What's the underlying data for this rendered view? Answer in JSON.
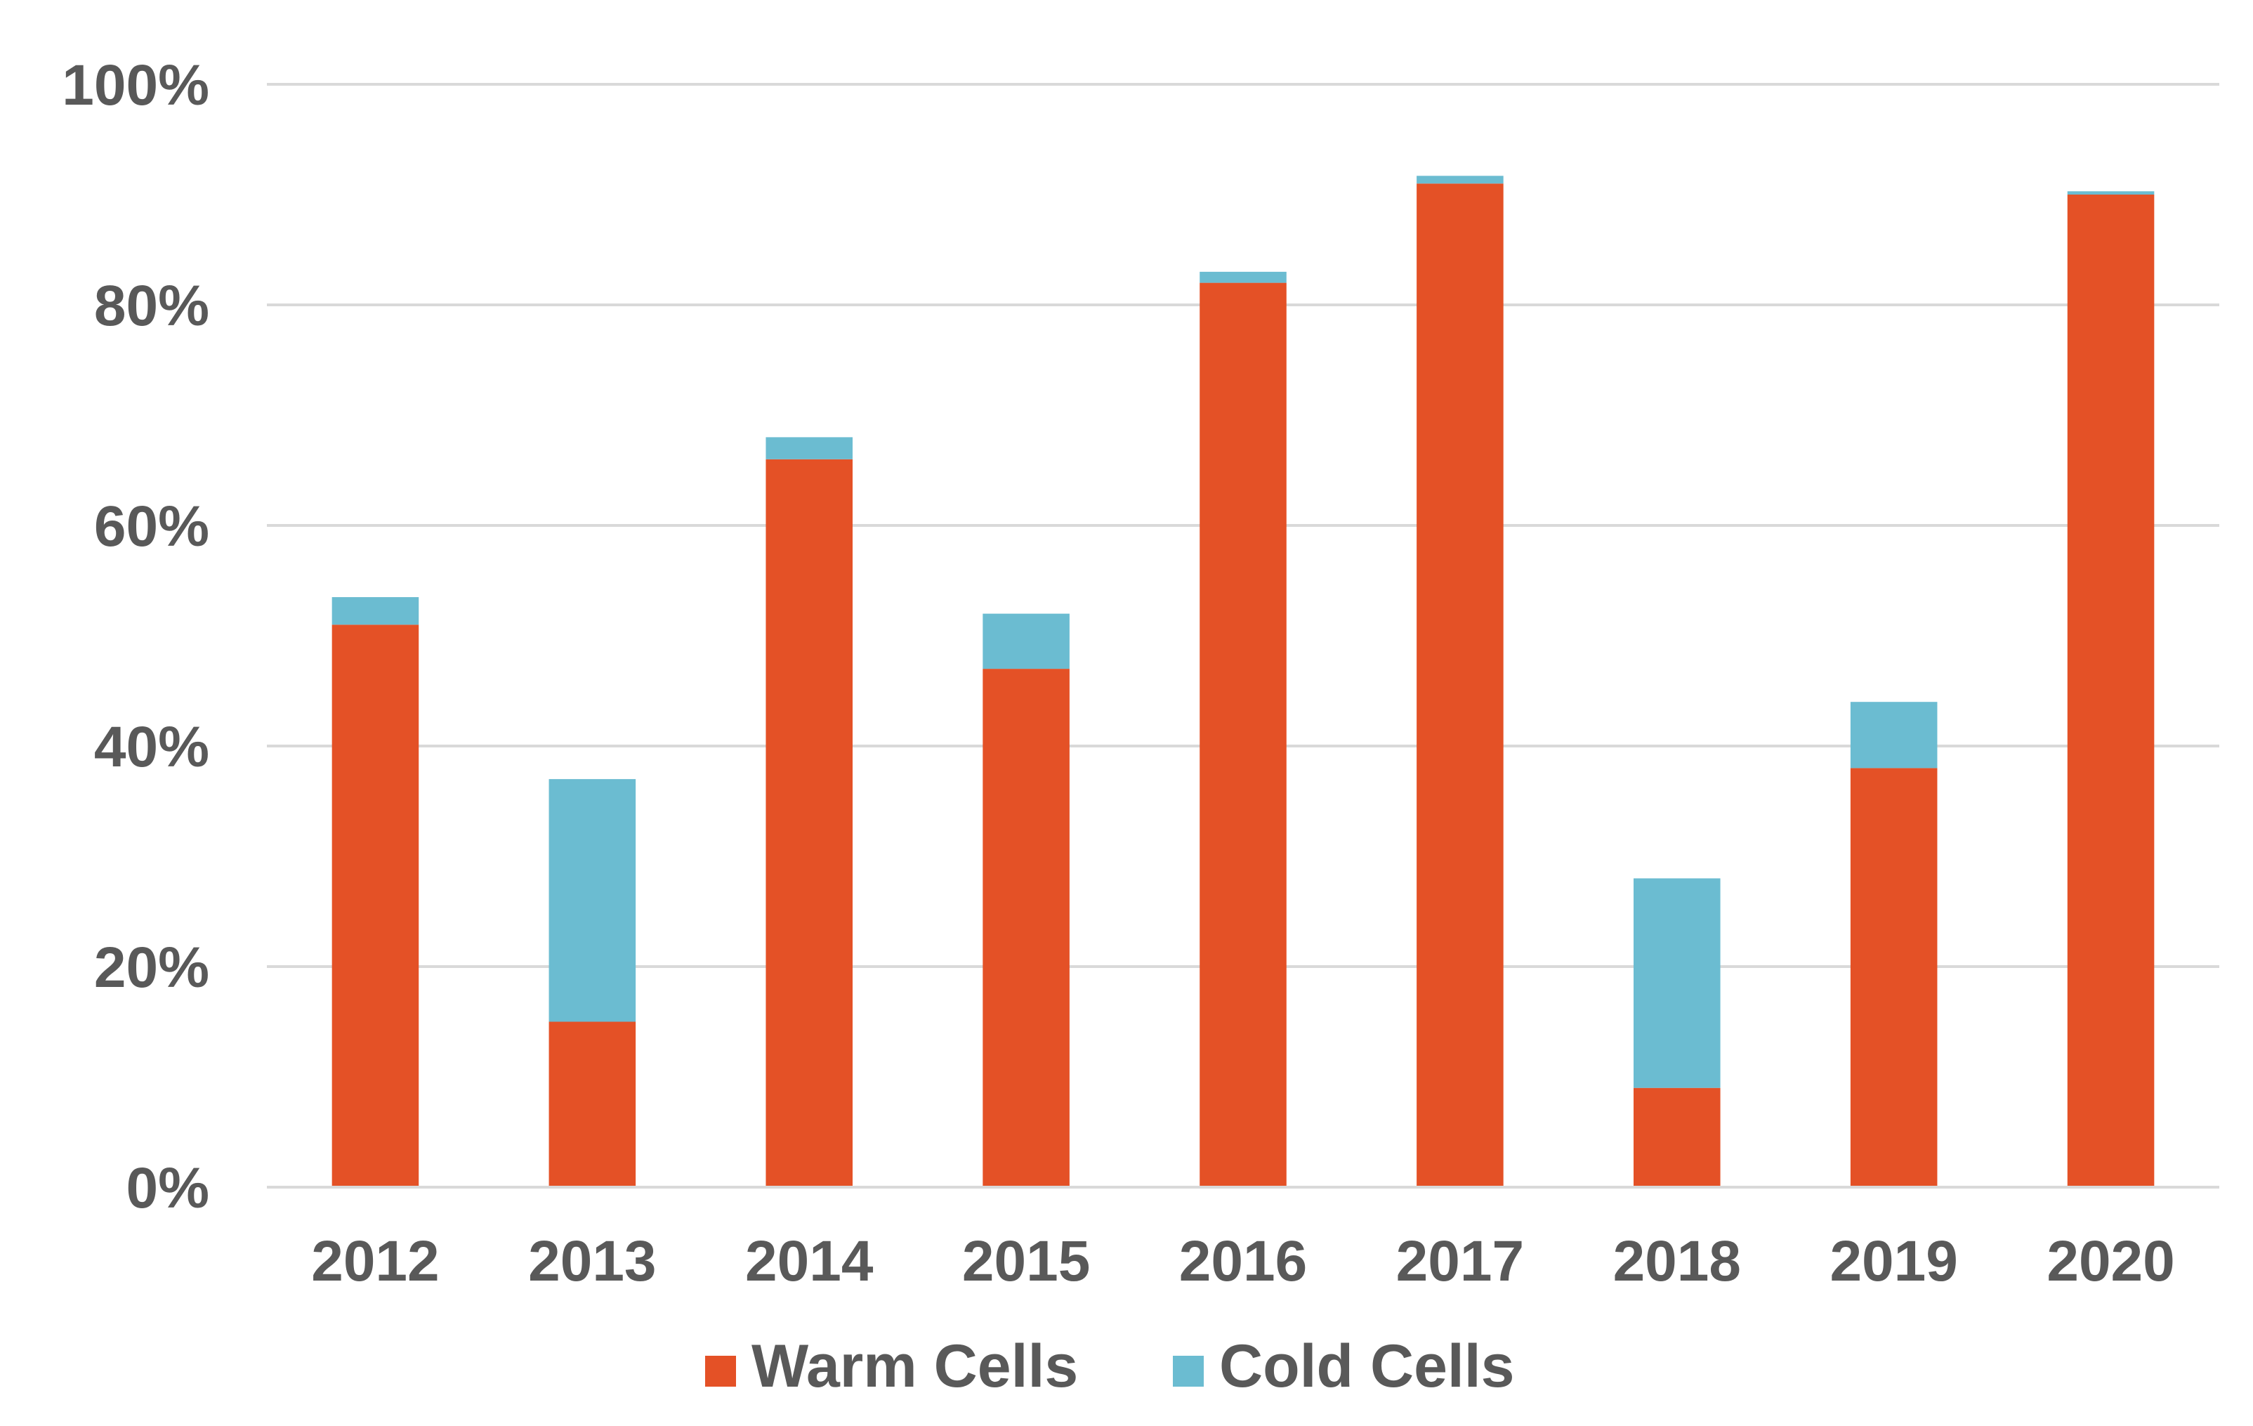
{
  "chart_data": {
    "type": "bar",
    "stacked": true,
    "title": "",
    "xlabel": "",
    "ylabel": "",
    "categories": [
      "2012",
      "2013",
      "2014",
      "2015",
      "2016",
      "2017",
      "2018",
      "2019",
      "2020"
    ],
    "series": [
      {
        "name": "Warm Cells",
        "color": "#E45126",
        "values": [
          51,
          15,
          66,
          47,
          82,
          91,
          9,
          38,
          90
        ]
      },
      {
        "name": "Cold Cells",
        "color": "#6BBCD1",
        "values": [
          2.5,
          22,
          2,
          5,
          1,
          0.7,
          19,
          6,
          0.3
        ]
      }
    ],
    "ylim": [
      0,
      100
    ],
    "yticks": [
      0,
      20,
      40,
      60,
      80,
      100
    ],
    "ytick_labels": [
      "0%",
      "20%",
      "40%",
      "60%",
      "80%",
      "100%"
    ],
    "grid": true,
    "legend_position": "bottom-center"
  }
}
